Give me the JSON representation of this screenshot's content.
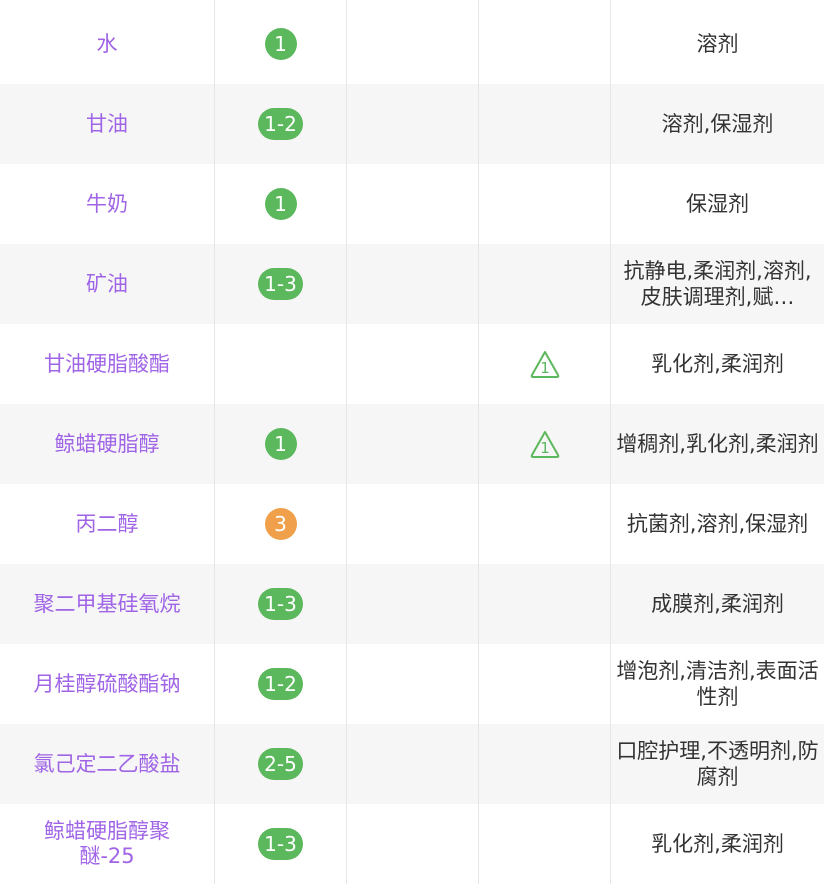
{
  "colors": {
    "safe": "#5cb85c",
    "mid": "#f0a04b",
    "name": "#a064e6",
    "warn": "#5cb85c"
  },
  "rows": [
    {
      "name": "水",
      "score": "1",
      "level": "safe",
      "warning": "",
      "function": "溶剂"
    },
    {
      "name": "甘油",
      "score": "1-2",
      "level": "safe",
      "warning": "",
      "function": "溶剂,保湿剂"
    },
    {
      "name": "牛奶",
      "score": "1",
      "level": "safe",
      "warning": "",
      "function": "保湿剂"
    },
    {
      "name": "矿油",
      "score": "1-3",
      "level": "safe",
      "warning": "",
      "function": "抗静电,柔润剂,溶剂,皮肤调理剂,赋…"
    },
    {
      "name": "甘油硬脂酸酯",
      "score": "",
      "level": "",
      "warning": "1",
      "function": "乳化剂,柔润剂"
    },
    {
      "name": "鲸蜡硬脂醇",
      "score": "1",
      "level": "safe",
      "warning": "1",
      "function": "增稠剂,乳化剂,柔润剂"
    },
    {
      "name": "丙二醇",
      "score": "3",
      "level": "mid",
      "warning": "",
      "function": "抗菌剂,溶剂,保湿剂"
    },
    {
      "name": "聚二甲基硅氧烷",
      "score": "1-3",
      "level": "safe",
      "warning": "",
      "function": "成膜剂,柔润剂"
    },
    {
      "name": "月桂醇硫酸酯钠",
      "score": "1-2",
      "level": "safe",
      "warning": "",
      "function": "增泡剂,清洁剂,表面活性剂"
    },
    {
      "name": "氯己定二乙酸盐",
      "score": "2-5",
      "level": "safe",
      "warning": "",
      "function": "口腔护理,不透明剂,防腐剂"
    },
    {
      "name": "鲸蜡硬脂醇聚醚-25",
      "score": "1-3",
      "level": "safe",
      "warning": "",
      "function": "乳化剂,柔润剂"
    }
  ]
}
